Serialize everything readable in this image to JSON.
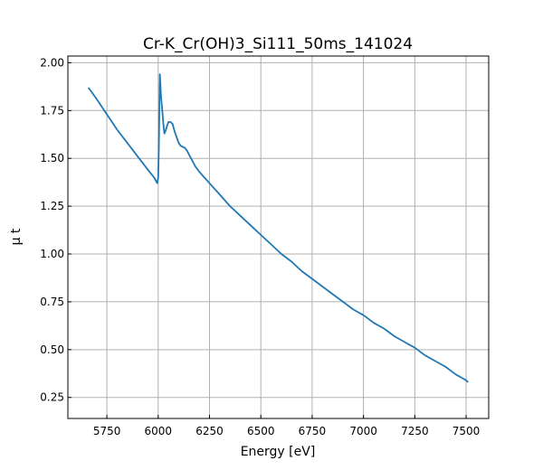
{
  "chart_data": {
    "type": "line",
    "title": "Cr-K_Cr(OH)3_Si111_50ms_141024",
    "xlabel": "Energy [eV]",
    "ylabel": "μ t",
    "xlim": [
      5560,
      7610
    ],
    "ylim": [
      0.14,
      2.035
    ],
    "xticks": [
      5750,
      6000,
      6250,
      6500,
      6750,
      7000,
      7250,
      7500
    ],
    "yticks": [
      0.25,
      0.5,
      0.75,
      1.0,
      1.25,
      1.5,
      1.75,
      2.0
    ],
    "xtick_labels": [
      "5750",
      "6000",
      "6250",
      "6500",
      "6750",
      "7000",
      "7250",
      "7500"
    ],
    "ytick_labels": [
      "0.25",
      "0.50",
      "0.75",
      "1.00",
      "1.25",
      "1.50",
      "1.75",
      "2.00"
    ],
    "grid": true,
    "color": "#1f77b4",
    "series": [
      {
        "x": [
          5660,
          5700,
          5750,
          5800,
          5850,
          5900,
          5950,
          5980,
          5990,
          5995,
          6000,
          6003,
          6006,
          6008,
          6010,
          6013,
          6016,
          6020,
          6025,
          6030,
          6035,
          6040,
          6050,
          6060,
          6070,
          6080,
          6090,
          6100,
          6110,
          6120,
          6130,
          6140,
          6150,
          6160,
          6170,
          6180,
          6200,
          6225,
          6250,
          6300,
          6350,
          6400,
          6450,
          6500,
          6550,
          6600,
          6650,
          6700,
          6750,
          6800,
          6850,
          6900,
          6950,
          7000,
          7050,
          7100,
          7150,
          7200,
          7250,
          7300,
          7350,
          7400,
          7450,
          7500,
          7510
        ],
        "y": [
          1.87,
          1.81,
          1.73,
          1.65,
          1.58,
          1.51,
          1.44,
          1.4,
          1.38,
          1.37,
          1.4,
          1.55,
          1.8,
          1.94,
          1.9,
          1.83,
          1.8,
          1.75,
          1.68,
          1.63,
          1.64,
          1.66,
          1.69,
          1.69,
          1.68,
          1.64,
          1.61,
          1.58,
          1.565,
          1.56,
          1.555,
          1.54,
          1.52,
          1.5,
          1.48,
          1.46,
          1.43,
          1.4,
          1.37,
          1.31,
          1.25,
          1.2,
          1.15,
          1.1,
          1.05,
          1.0,
          0.96,
          0.91,
          0.87,
          0.83,
          0.79,
          0.75,
          0.71,
          0.68,
          0.64,
          0.61,
          0.57,
          0.54,
          0.51,
          0.47,
          0.44,
          0.41,
          0.37,
          0.34,
          0.33
        ]
      }
    ]
  }
}
